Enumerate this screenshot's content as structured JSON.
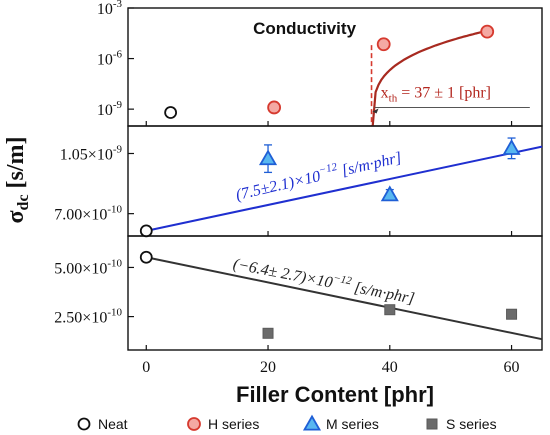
{
  "chart_data": {
    "type": "scatter",
    "xlabel": "Filler Content [phr]",
    "ylabel": "σdc [s/m]",
    "ylabel_main": "σ",
    "ylabel_sub": "dc",
    "ylabel_unit": " [s/m]",
    "x_ticks": [
      "0",
      "20",
      "40",
      "60"
    ],
    "xlim": [
      -3,
      65
    ],
    "colors": {
      "neat": "#111111",
      "h": "#d63a2f",
      "h_fill": "#f4a9a3",
      "m": "#1f5fd6",
      "m_fill": "#58b7f0",
      "s": "#5a5a5a",
      "s_fill": "#6b6b6b",
      "fit_top": "#a82a20",
      "fit_mid": "#1f2fd0",
      "fit_bot": "#333333"
    },
    "panels": [
      {
        "id": "top",
        "title": "Conductivity",
        "scale": "log",
        "ylim_exp": [
          -10,
          -3
        ],
        "y_ticks": [
          {
            "exp": -3,
            "label": "10",
            "sup": "-3"
          },
          {
            "exp": -6,
            "label": "10",
            "sup": "-6"
          },
          {
            "exp": -9,
            "label": "10",
            "sup": "-9"
          }
        ],
        "series": [
          {
            "name": "Neat",
            "marker": "circle",
            "points": [
              {
                "x": 4,
                "y_exp": -9.2
              }
            ]
          },
          {
            "name": "H series",
            "marker": "circle",
            "points": [
              {
                "x": 21,
                "y_exp": -8.9
              },
              {
                "x": 39,
                "y_exp": -5.15
              },
              {
                "x": 56,
                "y_exp": -4.4
              }
            ]
          }
        ],
        "fit": {
          "x_start": 37.2,
          "x_end": 56,
          "y_start_exp": -10,
          "y_end_exp": -4.35
        },
        "threshold": {
          "x": 37,
          "label": "x",
          "sub": "th",
          "rest": " = 37 ± 1 [phr]"
        }
      },
      {
        "id": "middle",
        "scale": "linear",
        "ylim": [
          5.7e-10,
          1.21e-09
        ],
        "y_ticks": [
          {
            "value": 1.05e-09,
            "label": "1.05×10",
            "sup": "-9"
          },
          {
            "value": 7e-10,
            "label": "7.00×10",
            "sup": "-10"
          }
        ],
        "series": [
          {
            "name": "Neat",
            "marker": "circle",
            "points": [
              {
                "x": 0,
                "y": 6e-10
              }
            ]
          },
          {
            "name": "M series",
            "marker": "triangle",
            "points": [
              {
                "x": 20,
                "y": 1.02e-09,
                "err": 8e-11
              },
              {
                "x": 40,
                "y": 8.1e-10,
                "err": 3e-11
              },
              {
                "x": 60,
                "y": 1.08e-09,
                "err": 6e-11
              }
            ]
          }
        ],
        "fit": {
          "x": [
            0,
            65
          ],
          "y": [
            6e-10,
            1.09e-09
          ]
        },
        "annotation": "(7.5±2.1)×10",
        "annotation_sup": "−12",
        "annotation_unit": " [s/m·phr]"
      },
      {
        "id": "bottom",
        "scale": "linear",
        "ylim": [
          8e-11,
          6.6e-10
        ],
        "y_ticks": [
          {
            "value": 5e-10,
            "label": "5.00×10",
            "sup": "-10"
          },
          {
            "value": 2.5e-10,
            "label": "2.50×10",
            "sup": "-10"
          }
        ],
        "series": [
          {
            "name": "Neat",
            "marker": "circle",
            "points": [
              {
                "x": 0,
                "y": 5.52e-10
              }
            ]
          },
          {
            "name": "S series",
            "marker": "square",
            "points": [
              {
                "x": 20,
                "y": 1.65e-10
              },
              {
                "x": 40,
                "y": 2.85e-10
              },
              {
                "x": 60,
                "y": 2.62e-10
              }
            ]
          }
        ],
        "fit": {
          "x": [
            0,
            65
          ],
          "y": [
            5.52e-10,
            1.35e-10
          ]
        },
        "annotation": "(−6.4± 2.7)×10",
        "annotation_sup": "−12",
        "annotation_unit": " [s/m·phr]"
      }
    ],
    "legend": [
      {
        "label": "Neat",
        "marker": "circle"
      },
      {
        "label": "H series",
        "marker": "circle-h"
      },
      {
        "label": "M series",
        "marker": "triangle"
      },
      {
        "label": "S series",
        "marker": "square"
      }
    ]
  }
}
